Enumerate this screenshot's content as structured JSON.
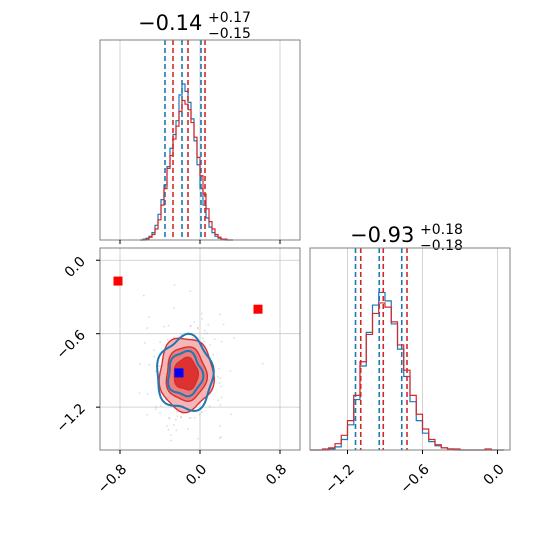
{
  "chart_data": [
    {
      "panel": "marginal-x",
      "type": "histogram",
      "title": {
        "main": "−0.14",
        "sup": "+0.17",
        "sub": "−0.15"
      },
      "xlim": [
        -1.0,
        1.0
      ],
      "x_ticks": [
        -0.8,
        0.0,
        0.8
      ],
      "series": [
        {
          "color": "#1f77b4",
          "dash_lines": [
            -0.33,
            -0.16,
            0.03
          ],
          "bins_x": [
            -0.6,
            -0.57,
            -0.54,
            -0.51,
            -0.48,
            -0.45,
            -0.42,
            -0.39,
            -0.36,
            -0.33,
            -0.3,
            -0.27,
            -0.24,
            -0.21,
            -0.18,
            -0.15,
            -0.12,
            -0.09,
            -0.06,
            -0.03,
            0.0,
            0.03,
            0.06,
            0.09,
            0.12,
            0.15,
            0.18,
            0.21,
            0.24,
            0.27,
            0.3
          ],
          "counts": [
            0,
            1,
            2,
            4,
            8,
            16,
            28,
            44,
            60,
            80,
            100,
            115,
            130,
            158,
            170,
            162,
            150,
            132,
            108,
            82,
            56,
            38,
            24,
            14,
            8,
            4,
            2,
            1,
            0,
            0,
            0
          ]
        },
        {
          "color": "#d62728",
          "dash_lines": [
            -0.29,
            -0.14,
            0.03
          ],
          "bins_x": [
            -0.6,
            -0.57,
            -0.54,
            -0.51,
            -0.48,
            -0.45,
            -0.42,
            -0.39,
            -0.36,
            -0.33,
            -0.3,
            -0.27,
            -0.24,
            -0.21,
            -0.18,
            -0.15,
            -0.12,
            -0.09,
            -0.06,
            -0.03,
            0.0,
            0.03,
            0.06,
            0.09,
            0.12,
            0.15,
            0.18,
            0.21,
            0.24,
            0.27,
            0.3
          ],
          "counts": [
            0,
            0,
            1,
            3,
            6,
            12,
            22,
            38,
            56,
            78,
            92,
            110,
            124,
            140,
            152,
            148,
            142,
            128,
            112,
            90,
            70,
            50,
            34,
            20,
            12,
            6,
            3,
            1,
            1,
            0,
            0
          ]
        }
      ]
    },
    {
      "panel": "marginal-y",
      "type": "histogram",
      "title": {
        "main": "−0.93",
        "sup": "+0.18",
        "sub": "−0.18"
      },
      "xlim": [
        -1.5,
        0.1
      ],
      "x_ticks": [
        -1.2,
        -0.6,
        0.0
      ],
      "series": [
        {
          "color": "#1f77b4",
          "dash_lines": [
            -1.12,
            -0.93,
            -0.75
          ],
          "bins_x": [
            -1.5,
            -1.45,
            -1.4,
            -1.35,
            -1.3,
            -1.25,
            -1.2,
            -1.15,
            -1.1,
            -1.05,
            -1.0,
            -0.95,
            -0.9,
            -0.85,
            -0.8,
            -0.75,
            -0.7,
            -0.65,
            -0.6,
            -0.55,
            -0.5,
            -0.45,
            -0.4,
            -0.35,
            -0.3,
            -0.25,
            -0.2,
            -0.15,
            -0.1,
            -0.05,
            0.0
          ],
          "counts": [
            0,
            0,
            0,
            1,
            3,
            10,
            24,
            48,
            80,
            112,
            138,
            150,
            142,
            120,
            96,
            70,
            46,
            28,
            16,
            8,
            4,
            2,
            1,
            0,
            0,
            0,
            0,
            0,
            0,
            0,
            0
          ]
        },
        {
          "color": "#d62728",
          "dash_lines": [
            -1.11,
            -0.93,
            -0.74
          ],
          "bins_x": [
            -1.5,
            -1.45,
            -1.4,
            -1.35,
            -1.3,
            -1.25,
            -1.2,
            -1.15,
            -1.1,
            -1.05,
            -1.0,
            -0.95,
            -0.9,
            -0.85,
            -0.8,
            -0.75,
            -0.7,
            -0.65,
            -0.6,
            -0.55,
            -0.5,
            -0.45,
            -0.4,
            -0.35,
            -0.3,
            -0.25,
            -0.2,
            -0.15,
            -0.1,
            -0.05,
            0.0
          ],
          "counts": [
            0,
            0,
            1,
            2,
            6,
            14,
            28,
            52,
            84,
            110,
            130,
            140,
            136,
            122,
            100,
            76,
            52,
            34,
            20,
            10,
            5,
            2,
            1,
            1,
            0,
            0,
            0,
            0,
            1,
            0,
            0
          ]
        }
      ]
    },
    {
      "panel": "joint",
      "type": "scatter",
      "xlim": [
        -1.0,
        1.0
      ],
      "ylim": [
        -1.55,
        0.1
      ],
      "x_ticks": [
        -0.8,
        0.0,
        0.8
      ],
      "y_ticks": [
        0.0,
        -0.6,
        -1.2
      ],
      "series": [
        {
          "color": "#1f77b4",
          "center": [
            -0.15,
            -0.93
          ],
          "levels_sigma": [
            [
              0.17,
              0.18
            ],
            [
              0.28,
              0.3
            ]
          ]
        },
        {
          "color": "#d62728",
          "center": [
            -0.14,
            -0.93
          ],
          "levels_sigma": [
            [
              0.12,
              0.13
            ],
            [
              0.2,
              0.22
            ],
            [
              0.27,
              0.3
            ]
          ]
        }
      ],
      "markers": [
        {
          "color": "#ff0000",
          "x": -0.82,
          "y": -0.17
        },
        {
          "color": "#ff0000",
          "x": 0.58,
          "y": -0.4
        },
        {
          "color": "#0000ff",
          "x": -0.21,
          "y": -0.92
        }
      ]
    }
  ]
}
